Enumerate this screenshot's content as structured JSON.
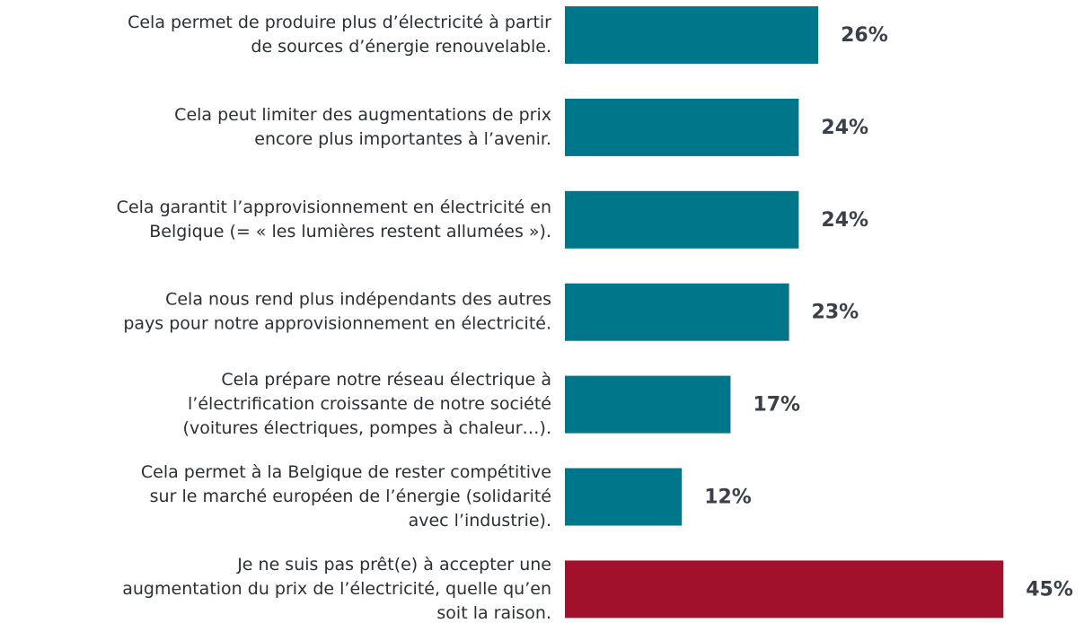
{
  "chart_data": {
    "type": "barh",
    "categories": [
      [
        "Cela permet de produire plus d’électricité à partir",
        "de sources d’énergie renouvelable."
      ],
      [
        "Cela peut limiter des augmentations de prix",
        "encore plus importantes à l’avenir."
      ],
      [
        "Cela garantit l’approvisionnement en électricité en",
        "Belgique (= « les lumières restent allumées »)."
      ],
      [
        "Cela nous rend plus indépendants des autres",
        "pays pour notre approvisionnement en électricité."
      ],
      [
        "Cela prépare notre réseau électrique à",
        "l’électrification croissante de notre société",
        "(voitures électriques, pompes à chaleur…)."
      ],
      [
        "Cela permet à la Belgique de rester compétitive",
        "sur le marché européen de l’énergie (solidarité",
        "avec l’industrie)."
      ],
      [
        "Je ne suis pas prêt(e) à accepter une",
        "augmentation du prix de l’électricité, quelle qu’en",
        "soit la raison."
      ]
    ],
    "values": [
      26,
      24,
      24,
      23,
      17,
      12,
      45
    ],
    "value_labels": [
      "26%",
      "24%",
      "24%",
      "23%",
      "17%",
      "12%",
      "45%"
    ],
    "colors": [
      "#00768a",
      "#00768a",
      "#00768a",
      "#00768a",
      "#00768a",
      "#00768a",
      "#a2112b"
    ]
  }
}
